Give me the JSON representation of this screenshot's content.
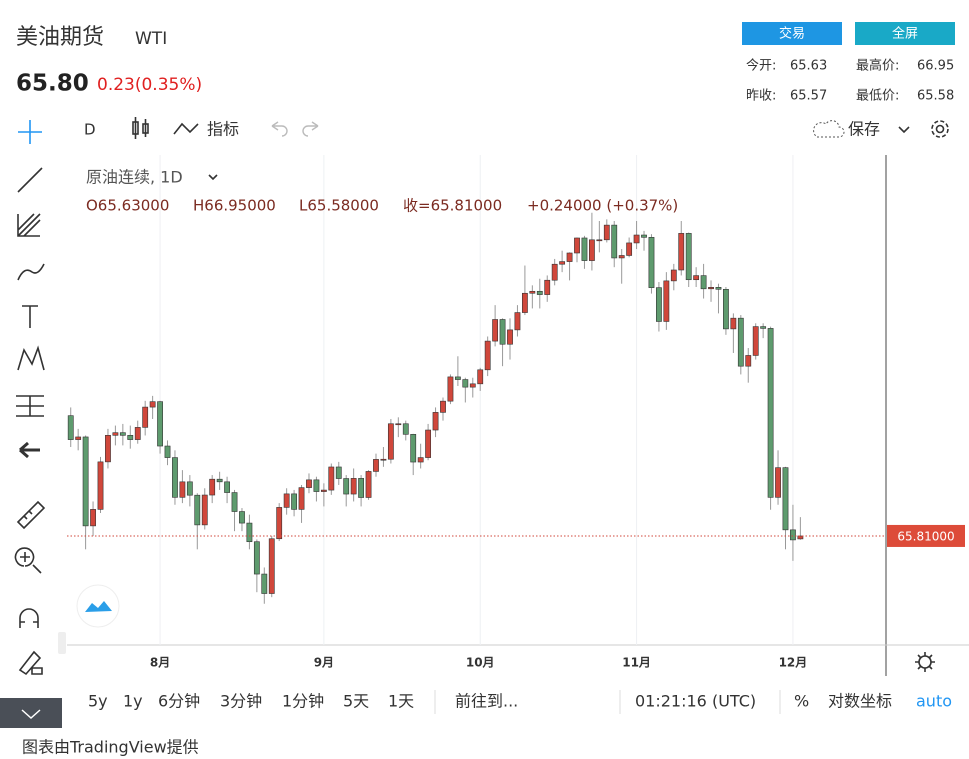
{
  "header": {
    "title": "美油期货",
    "symbol": "WTI",
    "price": "65.80",
    "change": "0.23(0.35%)",
    "buttons": [
      "交易",
      "全屏"
    ],
    "stats": [
      [
        "今开:",
        "65.63",
        "最高价:",
        "66.95"
      ],
      [
        "昨收:",
        "65.57",
        "最低价:",
        "65.58"
      ]
    ]
  },
  "toolbar": {
    "interval": "D",
    "indicators": "指标",
    "save": "保存"
  },
  "bottom_bar": {
    "ranges": [
      "5y",
      "1y",
      "6分钟",
      "3分钟",
      "1分钟",
      "5天",
      "1天"
    ],
    "goto": "前往到...",
    "time": "01:21:16 (UTC)",
    "percent": "%",
    "log": "对数坐标",
    "auto": "auto"
  },
  "footer": "图表由TradingView提供",
  "chart_data": {
    "type": "candlestick",
    "symbol_label": "原油连续, 1D",
    "ohlc_legend": [
      "O65.63000",
      "H66.95000",
      "L65.58000",
      "收=65.81000",
      "+0.24000 (+0.37%)"
    ],
    "up_color": "#d0473b",
    "down_color": "#5e9b6e",
    "ylim": [
      59.2,
      88.9
    ],
    "xlim": [
      -0.5,
      109.5
    ],
    "xticks": [
      {
        "value": 12,
        "label": "8月"
      },
      {
        "value": 34,
        "label": "9月"
      },
      {
        "value": 55,
        "label": "10月"
      },
      {
        "value": 76,
        "label": "11月"
      },
      {
        "value": 97,
        "label": "12月"
      }
    ],
    "grid": true,
    "last_price": {
      "value": 65.81,
      "label": "65.81000"
    },
    "open": [
      73.1,
      71.65,
      71.81,
      66.42,
      67.42,
      70.3,
      71.91,
      72.07,
      71.91,
      71.65,
      72.39,
      73.62,
      73.95,
      71.26,
      70.56,
      68.15,
      69.09,
      68.28,
      66.48,
      68.29,
      69.25,
      69.09,
      68.44,
      67.29,
      66.59,
      65.46,
      63.5,
      62.32,
      65.64,
      67.54,
      68.36,
      67.42,
      68.74,
      69.21,
      68.5,
      68.59,
      69.99,
      69.29,
      68.35,
      69.3,
      68.14,
      69.72,
      70.45,
      70.46,
      72.61,
      72.61,
      71.97,
      70.29,
      70.56,
      72.23,
      73.3,
      73.98,
      75.45,
      75.29,
      74.83,
      75.03,
      75.88,
      77.62,
      78.93,
      77.43,
      78.3,
      79.35,
      80.52,
      80.64,
      80.44,
      81.31,
      82.28,
      82.44,
      82.96,
      83.87,
      82.5,
      83.76,
      83.76,
      84.65,
      82.66,
      82.81,
      83.57,
      84.05,
      83.91,
      80.86,
      78.81,
      81.27,
      81.93,
      84.15,
      81.34,
      81.59,
      80.79,
      80.88,
      80.76,
      78.36,
      79.01,
      76.1,
      76.75,
      78.5,
      78.39,
      68.15,
      69.95,
      66.18,
      65.63
    ],
    "high": [
      73.6,
      72.3,
      71.9,
      67.9,
      70.6,
      72.3,
      72.5,
      72.6,
      72.5,
      72.8,
      74.0,
      74.3,
      74.0,
      71.6,
      71.0,
      69.8,
      69.5,
      68.4,
      68.7,
      69.5,
      69.7,
      69.4,
      68.6,
      67.5,
      67.1,
      65.6,
      63.9,
      65.8,
      67.8,
      68.7,
      68.6,
      68.9,
      69.6,
      69.4,
      69.0,
      70.2,
      70.3,
      69.5,
      69.9,
      69.5,
      69.8,
      70.8,
      71.2,
      72.9,
      73.0,
      72.8,
      72.0,
      71.4,
      72.6,
      73.6,
      74.2,
      75.6,
      76.7,
      75.4,
      75.4,
      76.0,
      77.9,
      79.8,
      79.0,
      79.0,
      79.8,
      82.2,
      81.0,
      81.4,
      81.6,
      82.6,
      83.1,
      83.0,
      83.9,
      84.0,
      85.4,
      84.9,
      85.0,
      84.9,
      83.2,
      83.9,
      84.9,
      84.3,
      84.1,
      81.2,
      81.8,
      82.3,
      84.9,
      84.2,
      82.1,
      82.3,
      81.3,
      81.1,
      80.9,
      79.3,
      79.2,
      77.2,
      78.7,
      78.7,
      78.5,
      71.0,
      70.0,
      67.7,
      66.95
    ],
    "low": [
      71.2,
      71.0,
      65.0,
      65.8,
      67.2,
      69.9,
      71.3,
      71.3,
      71.1,
      71.4,
      71.9,
      72.9,
      70.8,
      70.1,
      67.7,
      67.8,
      67.6,
      65.0,
      66.2,
      67.8,
      68.6,
      67.8,
      66.1,
      66.1,
      65.0,
      62.4,
      61.7,
      62.1,
      65.5,
      67.1,
      67.0,
      66.6,
      68.4,
      67.9,
      67.6,
      68.3,
      68.9,
      67.6,
      67.9,
      67.6,
      68.0,
      69.4,
      70.0,
      70.2,
      71.8,
      71.6,
      69.5,
      69.9,
      70.4,
      71.8,
      72.8,
      73.8,
      74.9,
      73.9,
      74.2,
      74.6,
      75.5,
      77.3,
      76.1,
      76.5,
      77.9,
      79.2,
      79.6,
      79.6,
      80.0,
      81.0,
      81.8,
      81.3,
      82.4,
      82.0,
      81.9,
      83.0,
      83.6,
      82.1,
      81.1,
      82.7,
      83.2,
      83.1,
      80.5,
      78.2,
      78.3,
      80.7,
      81.6,
      80.9,
      80.9,
      80.2,
      80.0,
      79.3,
      78.0,
      76.9,
      75.6,
      75.1,
      76.5,
      77.8,
      67.4,
      67.7,
      65.0,
      64.3,
      65.58
    ],
    "close": [
      71.65,
      71.81,
      66.42,
      67.42,
      70.3,
      71.91,
      72.07,
      71.91,
      71.65,
      72.39,
      73.62,
      73.95,
      71.26,
      70.56,
      68.15,
      69.09,
      68.28,
      66.48,
      68.29,
      69.25,
      69.09,
      68.44,
      67.29,
      66.59,
      65.46,
      63.5,
      62.32,
      65.64,
      67.54,
      68.36,
      67.42,
      68.74,
      69.21,
      68.5,
      68.59,
      69.99,
      69.29,
      68.35,
      69.3,
      68.14,
      69.72,
      70.45,
      70.46,
      72.61,
      72.61,
      71.97,
      70.29,
      70.56,
      72.23,
      73.3,
      73.98,
      75.45,
      75.29,
      74.83,
      75.03,
      75.88,
      77.62,
      78.93,
      77.43,
      78.3,
      79.35,
      80.52,
      80.64,
      80.44,
      81.31,
      82.28,
      82.44,
      82.96,
      83.87,
      82.5,
      83.76,
      83.76,
      84.65,
      82.66,
      82.81,
      83.57,
      84.05,
      83.91,
      80.86,
      78.81,
      81.27,
      81.93,
      84.15,
      81.34,
      81.59,
      80.79,
      80.88,
      80.76,
      78.36,
      79.01,
      76.1,
      76.75,
      78.5,
      78.39,
      68.15,
      69.95,
      66.18,
      65.57,
      65.81
    ]
  }
}
